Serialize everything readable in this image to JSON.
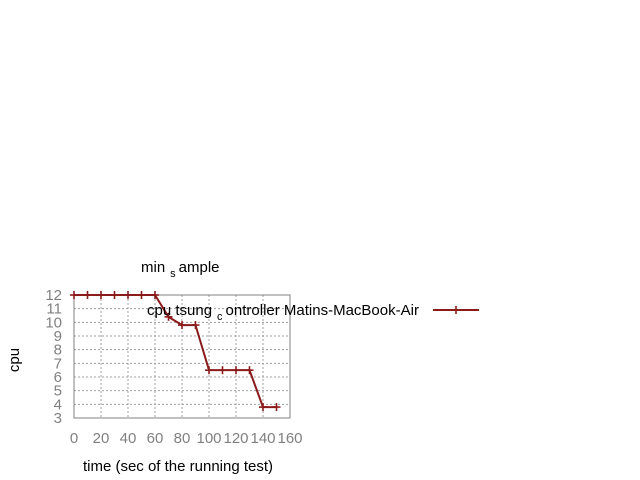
{
  "chart_data": {
    "type": "line",
    "title": {
      "pre": "min",
      "sub": "s",
      "post": "ample"
    },
    "xlabel": "time (sec of the running test)",
    "ylabel": "cpu",
    "xlim": [
      0,
      160
    ],
    "ylim": [
      3,
      12
    ],
    "xticks": [
      "0",
      "20",
      "40",
      "60",
      "80",
      "100",
      "120",
      "140",
      "160"
    ],
    "yticks": [
      "3",
      "4",
      "5",
      "6",
      "7",
      "8",
      "9",
      "10",
      "11",
      "12"
    ],
    "grid": true,
    "legend_position": "right",
    "series": [
      {
        "name": {
          "pre": "cpu tsung",
          "sub": "c",
          "post": "ontroller Matins-MacBook-Air"
        },
        "color": "#8b1a1a",
        "marker": "plus",
        "x": [
          0,
          10,
          20,
          30,
          40,
          50,
          60,
          70,
          80,
          90,
          100,
          110,
          120,
          130,
          140,
          150
        ],
        "y": [
          12,
          12,
          12,
          12,
          12,
          12,
          12,
          10.4,
          9.8,
          9.8,
          6.5,
          6.5,
          6.5,
          6.5,
          3.8,
          3.8
        ]
      }
    ]
  }
}
